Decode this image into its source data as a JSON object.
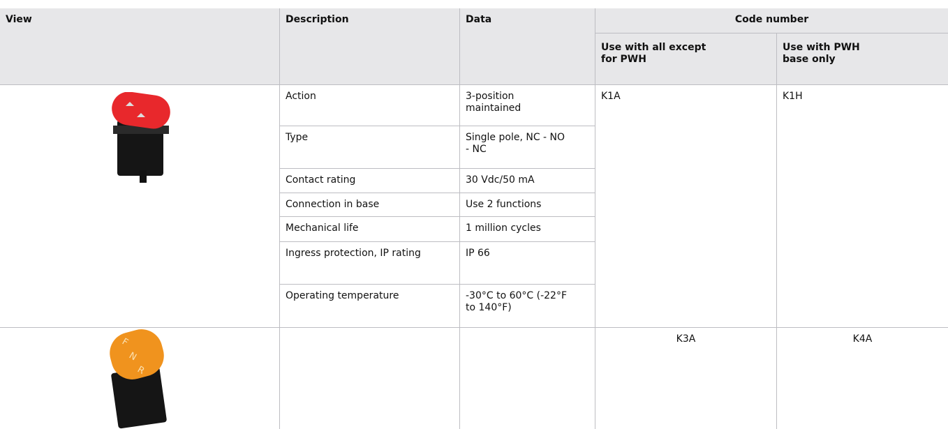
{
  "table": {
    "headers": {
      "view": "View",
      "description": "Description",
      "data": "Data",
      "code_number": "Code number",
      "code_all": "Use with all except for PWH",
      "code_pwh": "Use with PWH base only"
    },
    "rows": [
      {
        "specs": [
          [
            "Action",
            "3-position maintained"
          ],
          [
            "Type",
            "Single pole, NC - NO - NC"
          ],
          [
            "Contact rating",
            "30 Vdc/50 mA"
          ],
          [
            "Connection in base",
            "Use 2 functions"
          ],
          [
            "Mechanical life",
            "1 million cycles"
          ],
          [
            "Ingress protection, IP rating",
            "IP 66"
          ],
          [
            "Operating temperature",
            "-30°C to 60°C (-22°F to 140°F)"
          ]
        ],
        "code_all": "K1A",
        "code_pwh": "K1H"
      },
      {
        "switch_labels": [
          "F",
          "N",
          "R"
        ],
        "code_all": "K3A",
        "code_pwh": "K4A"
      }
    ]
  }
}
